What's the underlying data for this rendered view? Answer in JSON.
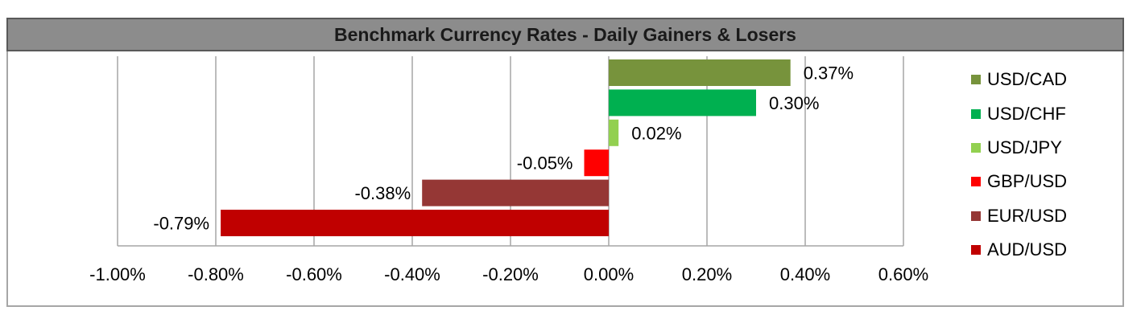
{
  "chart_data": {
    "type": "bar",
    "orientation": "horizontal",
    "title": "Benchmark Currency Rates - Daily Gainers & Losers",
    "categories": [
      "USD/CAD",
      "USD/CHF",
      "USD/JPY",
      "GBP/USD",
      "EUR/USD",
      "AUD/USD"
    ],
    "values": [
      0.37,
      0.3,
      0.02,
      -0.05,
      -0.38,
      -0.79
    ],
    "value_labels": [
      "0.37%",
      "0.30%",
      "0.02%",
      "-0.05%",
      "-0.38%",
      "-0.79%"
    ],
    "colors": [
      "#77933c",
      "#00b050",
      "#92d050",
      "#ff0000",
      "#953735",
      "#c00000"
    ],
    "xlim": [
      -1.0,
      0.6
    ],
    "xticks": [
      -1.0,
      -0.8,
      -0.6,
      -0.4,
      -0.2,
      0.0,
      0.2,
      0.4,
      0.6
    ],
    "xtick_labels": [
      "-1.00%",
      "-0.80%",
      "-0.60%",
      "-0.40%",
      "-0.20%",
      "0.00%",
      "0.20%",
      "0.40%",
      "0.60%"
    ],
    "xlabel": "",
    "ylabel": "",
    "grid": "vertical",
    "legend_position": "right"
  }
}
